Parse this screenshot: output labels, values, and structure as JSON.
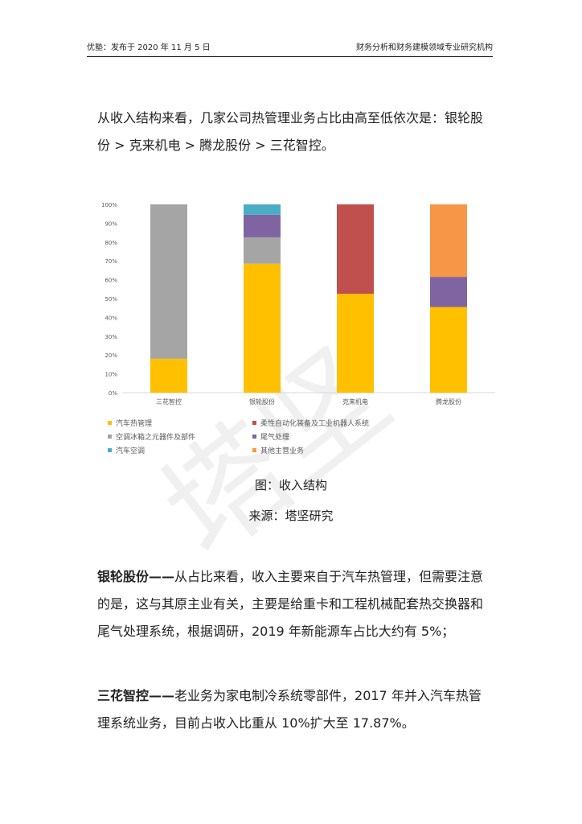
{
  "header": {
    "left": "优塾：发布于 2020 年 11 月 5 日",
    "right": "财务分析和财务建模领域专业研究机构"
  },
  "intro": "从收入结构来看，几家公司热管理业务占比由高至低依次是：银轮股份 > 克来机电 > 腾龙股份 > 三花智控。",
  "watermark": "塔坚",
  "colors": {
    "yellow": "#FFC000",
    "red": "#C0504D",
    "gray": "#A5A5A5",
    "purple": "#8064A2",
    "teal": "#4BACC6",
    "orange": "#F79646"
  },
  "chart_data": {
    "type": "bar",
    "stacked": true,
    "categories": [
      "三花智控",
      "银轮股份",
      "克来机电",
      "腾龙股份"
    ],
    "ylim": [
      0,
      100
    ],
    "yticks": [
      "0%",
      "10%",
      "20%",
      "30%",
      "40%",
      "50%",
      "60%",
      "70%",
      "80%",
      "90%",
      "100%"
    ],
    "legend_position": "bottom",
    "series": [
      {
        "name": "汽车热管理",
        "color": "#FFC000",
        "values": [
          18,
          68.5,
          52.5,
          45.5
        ]
      },
      {
        "name": "柔性自动化装备及工业机器人系统",
        "color": "#C0504D",
        "values": [
          0,
          0,
          47.5,
          0
        ]
      },
      {
        "name": "空调冰箱之元器件及部件",
        "color": "#A5A5A5",
        "values": [
          82,
          14,
          0,
          0
        ]
      },
      {
        "name": "尾气处理",
        "color": "#8064A2",
        "values": [
          0,
          12,
          0,
          16
        ]
      },
      {
        "name": "汽车空调",
        "color": "#4BACC6",
        "values": [
          0,
          5.5,
          0,
          0
        ]
      },
      {
        "name": "其他主营业务",
        "color": "#F79646",
        "values": [
          0,
          0,
          0,
          38.5
        ]
      }
    ]
  },
  "captions": {
    "figure": "图：收入结构",
    "source": "来源：塔坚研究"
  },
  "paragraphs": [
    {
      "lead": "银轮股份——",
      "text": "从占比来看，收入主要来自于汽车热管理，但需要注意的是，这与其原主业有关，主要是给重卡和工程机械配套热交换器和尾气处理系统，根据调研，2019 年新能源车占比大约有 5%；"
    },
    {
      "lead": "三花智控——",
      "text": "老业务为家电制冷系统零部件，2017 年并入汽车热管理系统业务，目前占收入比重从 10%扩大至 17.87%。"
    }
  ]
}
